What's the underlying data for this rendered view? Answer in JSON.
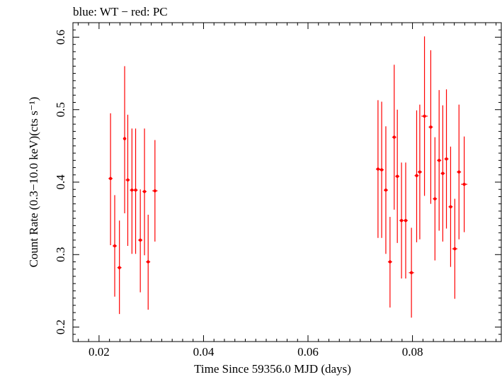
{
  "chart_data": {
    "type": "scatter",
    "title": "blue: WT − red: PC",
    "xlabel": "Time Since 59356.0 MJD (days)",
    "ylabel": "Count Rate (0.3−10.0 keV)(cts s⁻¹)",
    "xlim": [
      0.015,
      0.097
    ],
    "ylim": [
      0.18,
      0.62
    ],
    "x_ticks": [
      "0.02",
      "0.04",
      "0.06",
      "0.08"
    ],
    "y_ticks": [
      "0.2",
      "0.3",
      "0.4",
      "0.5",
      "0.6"
    ],
    "grid": false,
    "series": [
      {
        "color": "#ff0000",
        "points": [
          {
            "x": 0.0222,
            "y": 0.405,
            "xerr": 0.0004,
            "yerr_low": 0.092,
            "yerr_high": 0.09
          },
          {
            "x": 0.023,
            "y": 0.312,
            "xerr": 0.0004,
            "yerr_low": 0.07,
            "yerr_high": 0.07
          },
          {
            "x": 0.0239,
            "y": 0.282,
            "xerr": 0.0004,
            "yerr_low": 0.064,
            "yerr_high": 0.065
          },
          {
            "x": 0.0249,
            "y": 0.46,
            "xerr": 0.0003,
            "yerr_low": 0.103,
            "yerr_high": 0.1
          },
          {
            "x": 0.0255,
            "y": 0.403,
            "xerr": 0.0004,
            "yerr_low": 0.091,
            "yerr_high": 0.09
          },
          {
            "x": 0.0263,
            "y": 0.389,
            "xerr": 0.0004,
            "yerr_low": 0.088,
            "yerr_high": 0.085
          },
          {
            "x": 0.027,
            "y": 0.389,
            "xerr": 0.0004,
            "yerr_low": 0.088,
            "yerr_high": 0.085
          },
          {
            "x": 0.0279,
            "y": 0.32,
            "xerr": 0.0004,
            "yerr_low": 0.072,
            "yerr_high": 0.07
          },
          {
            "x": 0.0287,
            "y": 0.387,
            "xerr": 0.0004,
            "yerr_low": 0.088,
            "yerr_high": 0.087
          },
          {
            "x": 0.0294,
            "y": 0.29,
            "xerr": 0.0004,
            "yerr_low": 0.066,
            "yerr_high": 0.065
          },
          {
            "x": 0.0307,
            "y": 0.388,
            "xerr": 0.0005,
            "yerr_low": 0.07,
            "yerr_high": 0.07
          },
          {
            "x": 0.0734,
            "y": 0.418,
            "xerr": 0.0004,
            "yerr_low": 0.095,
            "yerr_high": 0.095
          },
          {
            "x": 0.0741,
            "y": 0.417,
            "xerr": 0.0004,
            "yerr_low": 0.094,
            "yerr_high": 0.094
          },
          {
            "x": 0.0749,
            "y": 0.389,
            "xerr": 0.0004,
            "yerr_low": 0.088,
            "yerr_high": 0.088
          },
          {
            "x": 0.0757,
            "y": 0.29,
            "xerr": 0.0004,
            "yerr_low": 0.063,
            "yerr_high": 0.062
          },
          {
            "x": 0.0765,
            "y": 0.462,
            "xerr": 0.0004,
            "yerr_low": 0.1,
            "yerr_high": 0.1
          },
          {
            "x": 0.0771,
            "y": 0.408,
            "xerr": 0.0004,
            "yerr_low": 0.092,
            "yerr_high": 0.092
          },
          {
            "x": 0.0779,
            "y": 0.347,
            "xerr": 0.0004,
            "yerr_low": 0.08,
            "yerr_high": 0.08
          },
          {
            "x": 0.0787,
            "y": 0.347,
            "xerr": 0.0004,
            "yerr_low": 0.08,
            "yerr_high": 0.08
          },
          {
            "x": 0.0798,
            "y": 0.275,
            "xerr": 0.0005,
            "yerr_low": 0.062,
            "yerr_high": 0.062
          },
          {
            "x": 0.0808,
            "y": 0.409,
            "xerr": 0.0004,
            "yerr_low": 0.092,
            "yerr_high": 0.09
          },
          {
            "x": 0.0814,
            "y": 0.414,
            "xerr": 0.0004,
            "yerr_low": 0.093,
            "yerr_high": 0.093
          },
          {
            "x": 0.0823,
            "y": 0.491,
            "xerr": 0.0006,
            "yerr_low": 0.11,
            "yerr_high": 0.11
          },
          {
            "x": 0.0835,
            "y": 0.476,
            "xerr": 0.0004,
            "yerr_low": 0.106,
            "yerr_high": 0.106
          },
          {
            "x": 0.0843,
            "y": 0.377,
            "xerr": 0.0004,
            "yerr_low": 0.085,
            "yerr_high": 0.085
          },
          {
            "x": 0.0851,
            "y": 0.43,
            "xerr": 0.0004,
            "yerr_low": 0.097,
            "yerr_high": 0.097
          },
          {
            "x": 0.0858,
            "y": 0.412,
            "xerr": 0.0004,
            "yerr_low": 0.094,
            "yerr_high": 0.094
          },
          {
            "x": 0.0865,
            "y": 0.432,
            "xerr": 0.0004,
            "yerr_low": 0.096,
            "yerr_high": 0.096
          },
          {
            "x": 0.0873,
            "y": 0.366,
            "xerr": 0.0004,
            "yerr_low": 0.083,
            "yerr_high": 0.083
          },
          {
            "x": 0.0881,
            "y": 0.308,
            "xerr": 0.0005,
            "yerr_low": 0.069,
            "yerr_high": 0.069
          },
          {
            "x": 0.0889,
            "y": 0.414,
            "xerr": 0.0004,
            "yerr_low": 0.093,
            "yerr_high": 0.093
          },
          {
            "x": 0.0899,
            "y": 0.397,
            "xerr": 0.0006,
            "yerr_low": 0.066,
            "yerr_high": 0.066
          }
        ]
      }
    ]
  }
}
